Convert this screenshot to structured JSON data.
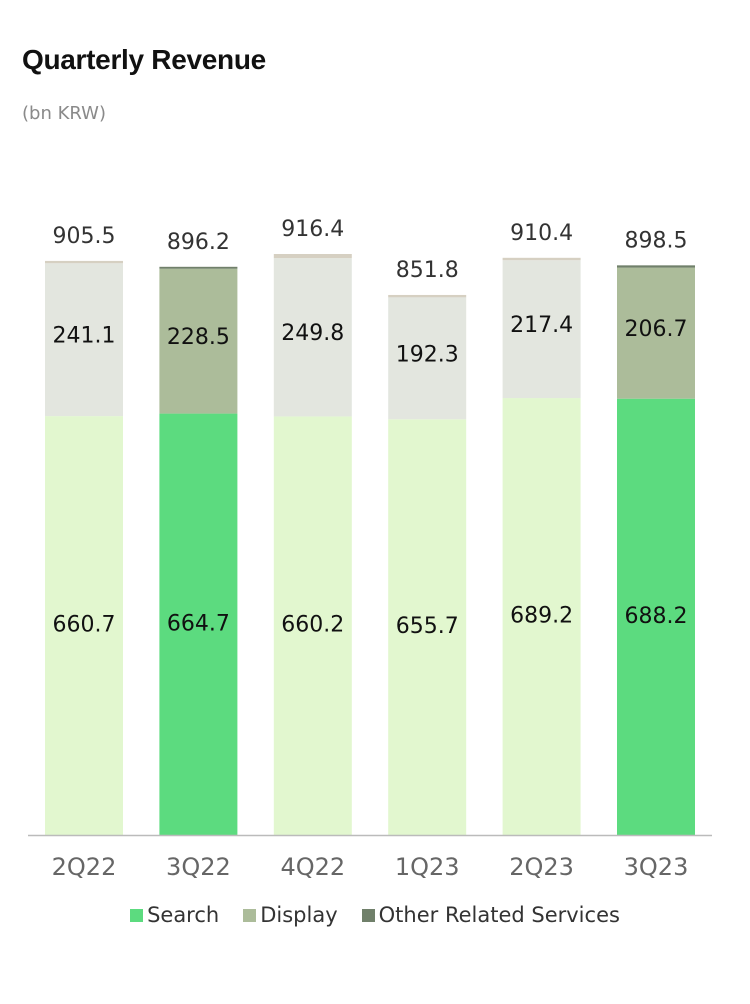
{
  "header": {
    "title": "Quarterly Revenue",
    "subtitle": "(bn KRW)"
  },
  "colors": {
    "search_highlight": "#5cdb7f",
    "search_light": "#e2f7cf",
    "display_highlight": "#acbc9a",
    "display_light": "#e3e6df",
    "other_highlight": "#70806a",
    "other_light": "#d6d0c2",
    "axis": "#bbbbbb",
    "tick_text": "#666666",
    "value_text": "#111111",
    "total_text": "#333333"
  },
  "chart_data": {
    "type": "bar",
    "stacked": true,
    "title": "Quarterly Revenue",
    "subtitle": "(bn KRW)",
    "categories": [
      "2Q22",
      "3Q22",
      "4Q22",
      "1Q23",
      "2Q23",
      "3Q23"
    ],
    "highlighted": [
      false,
      true,
      false,
      false,
      false,
      true
    ],
    "series": [
      {
        "name": "Search",
        "values": [
          660.7,
          664.7,
          660.2,
          655.7,
          689.2,
          688.2
        ]
      },
      {
        "name": "Display",
        "values": [
          241.1,
          228.5,
          249.8,
          192.3,
          217.4,
          206.7
        ]
      },
      {
        "name": "Other Related Services",
        "values": [
          3.7,
          3.0,
          6.4,
          3.8,
          3.8,
          3.6
        ]
      }
    ],
    "totals": [
      905.5,
      896.2,
      916.4,
      851.8,
      910.4,
      898.5
    ],
    "grid": false,
    "legend_position": "bottom"
  },
  "legend": [
    {
      "label": "Search",
      "color": "#5cdb7f"
    },
    {
      "label": "Display",
      "color": "#acbc9a"
    },
    {
      "label": "Other Related Services",
      "color": "#70806a"
    }
  ]
}
